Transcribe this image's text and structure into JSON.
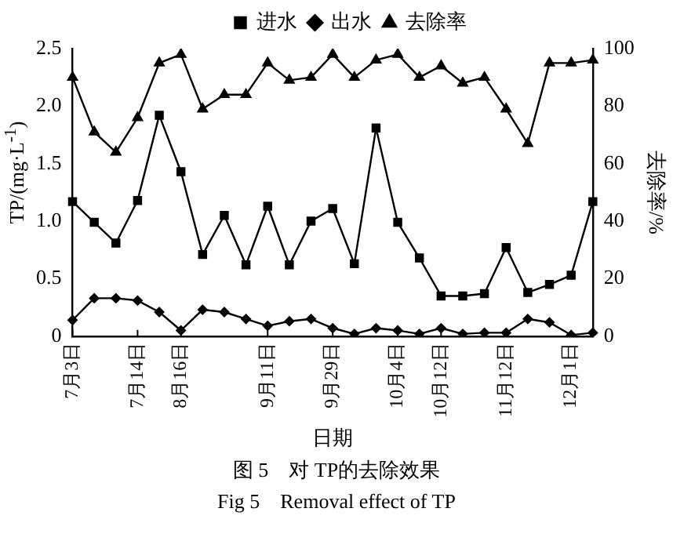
{
  "chart_data": {
    "type": "line",
    "categories": [
      "7月3日",
      null,
      null,
      "7月14日",
      null,
      "8月16日",
      null,
      null,
      null,
      "9月11日",
      null,
      null,
      "9月29日",
      null,
      null,
      "10月4日",
      null,
      "10月12日",
      null,
      null,
      "11月12日",
      null,
      null,
      "12月1日",
      null
    ],
    "series": [
      {
        "name": "进水",
        "color": "#000000",
        "marker": "square",
        "values": [
          1.17,
          0.99,
          0.81,
          1.18,
          1.92,
          1.43,
          0.71,
          1.05,
          0.62,
          1.13,
          0.62,
          1.0,
          1.11,
          0.63,
          1.81,
          0.99,
          0.68,
          0.35,
          0.35,
          0.37,
          0.77,
          0.38,
          0.45,
          0.53,
          1.17
        ]
      },
      {
        "name": "出水",
        "color": "#000000",
        "marker": "diamond",
        "values": [
          0.14,
          0.33,
          0.33,
          0.31,
          0.21,
          0.05,
          0.23,
          0.21,
          0.15,
          0.09,
          0.13,
          0.15,
          0.07,
          0.02,
          0.07,
          0.05,
          0.02,
          0.07,
          0.02,
          0.03,
          0.03,
          0.15,
          0.12,
          0.01,
          0.03
        ]
      },
      {
        "name": "去除率",
        "color": "#000000",
        "marker": "triangle",
        "axis": "y2",
        "values": [
          90,
          71,
          64,
          76,
          95,
          98,
          79,
          84,
          84,
          95,
          89,
          90,
          98,
          90,
          96,
          98,
          90,
          94,
          88,
          90,
          79,
          67,
          95,
          95,
          96
        ]
      }
    ],
    "xlabel": "日期",
    "ylabel": "TP/(mg·L$^{-1}$)",
    "y2label": "去除率/%",
    "ylim": [
      0,
      2.5
    ],
    "yticks": [
      0,
      0.5,
      {
        "value": 1,
        "label": "1.0"
      },
      1.5,
      {
        "value": 2,
        "label": "2.0"
      },
      2.5
    ],
    "y2lim": [
      0,
      100
    ],
    "y2ticks": [
      0,
      20,
      40,
      60,
      80,
      100
    ],
    "grid": false,
    "legend": "top",
    "line_style": "solid",
    "annotations": [
      "图 5　对 TP的去除效果",
      "Fig 5　Removal effect of TP"
    ]
  }
}
